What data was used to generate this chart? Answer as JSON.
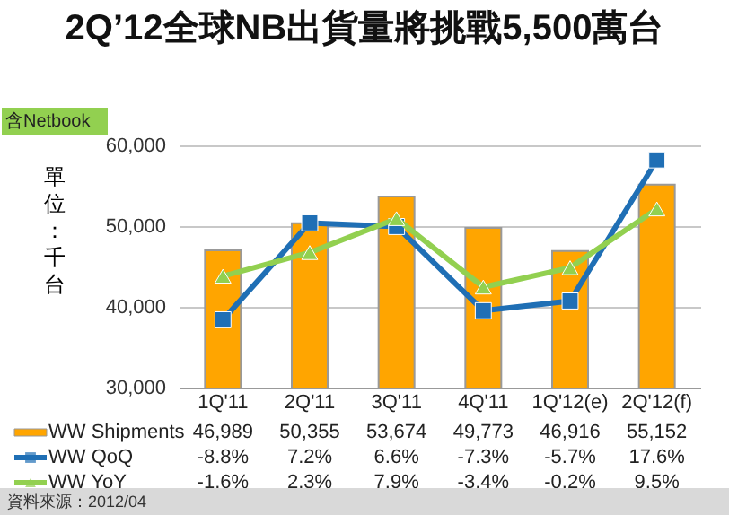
{
  "chart_data": {
    "type": "bar",
    "title": "2Q’12全球NB出貨量將挑戰5,500萬台",
    "ylabel": "單位：千台",
    "annotations": [
      "含Netbook",
      "資料來源：2012/04"
    ],
    "categories": [
      "1Q'11",
      "2Q'11",
      "3Q'11",
      "4Q'11",
      "1Q'12(e)",
      "2Q'12(f)"
    ],
    "series": [
      {
        "name": "WW Shipments",
        "color": "#ffa500",
        "values": [
          46989,
          50355,
          53674,
          49773,
          46916,
          55152
        ],
        "value_labels": [
          "46,989",
          "50,355",
          "53,674",
          "49,773",
          "46,916",
          "55,152"
        ]
      },
      {
        "name": "WW QoQ",
        "type": "line",
        "axis": "y2",
        "color": "#1f6fb5",
        "marker": "square",
        "values": [
          -8.8,
          7.2,
          6.6,
          -7.3,
          -5.7,
          17.6
        ],
        "value_labels": [
          "-8.8%",
          "7.2%",
          "6.6%",
          "-7.3%",
          "-5.7%",
          "17.6%"
        ]
      },
      {
        "name": "WW YoY",
        "type": "line",
        "axis": "y2",
        "color": "#92d050",
        "marker": "triangle",
        "values": [
          -1.6,
          2.3,
          7.9,
          -3.4,
          -0.2,
          9.5
        ],
        "value_labels": [
          "-1.6%",
          "2.3%",
          "7.9%",
          "-3.4%",
          "-0.2%",
          "9.5%"
        ]
      }
    ],
    "ylim": [
      30000,
      60000
    ],
    "yticks": [
      {
        "value": 30000,
        "label": "30,000"
      },
      {
        "value": 40000,
        "label": "40,000"
      },
      {
        "value": 50000,
        "label": "50,000"
      },
      {
        "value": 60000,
        "label": "60,000"
      }
    ],
    "y2lim": [
      -20,
      20
    ],
    "grid": "y",
    "legend": "bottom"
  }
}
